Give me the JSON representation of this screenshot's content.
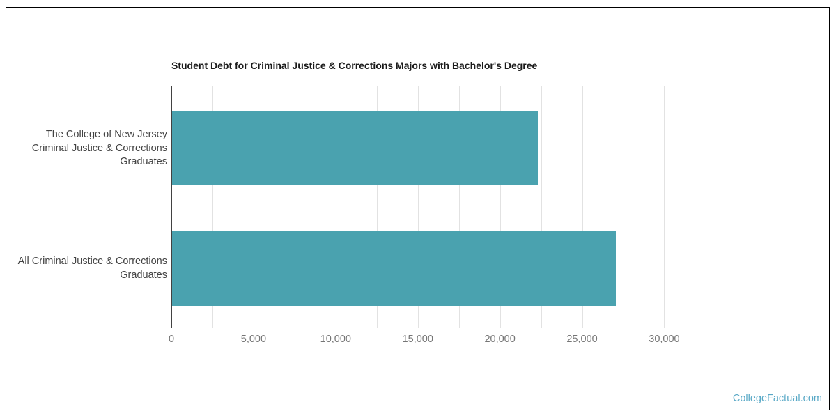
{
  "frame": {
    "background": "#ffffff",
    "border_color": "#000000"
  },
  "chart_data": {
    "type": "bar",
    "orientation": "horizontal",
    "title": "Student Debt for Criminal Justice & Corrections Majors with Bachelor's Degree",
    "categories": [
      "The College of New Jersey Criminal Justice & Corrections Graduates",
      "All Criminal Justice & Corrections Graduates"
    ],
    "categories_lines": [
      [
        "The College of New Jersey",
        "Criminal Justice & Corrections",
        "Graduates"
      ],
      [
        "All Criminal Justice & Corrections",
        "Graduates"
      ]
    ],
    "values": [
      22250,
      27000
    ],
    "xlabel": "",
    "ylabel": "",
    "xlim": [
      0,
      33500
    ],
    "x_ticks": [
      0,
      5000,
      10000,
      15000,
      20000,
      25000,
      30000
    ],
    "x_tick_labels": [
      "0",
      "5,000",
      "10,000",
      "15,000",
      "20,000",
      "25,000",
      "30,000"
    ],
    "gridline_step": 2500,
    "grid": "vertical-gridlines-on",
    "legend": "none",
    "bar_color": "#4aa2af",
    "gridline_color": "#e2e2e2",
    "axis_line_color": "#424242",
    "tick_label_color": "#757575",
    "category_label_color": "#424242",
    "title_color": "#1a1a1a"
  },
  "watermark": {
    "label": "CollegeFactual.com",
    "color": "#58a8c6"
  }
}
